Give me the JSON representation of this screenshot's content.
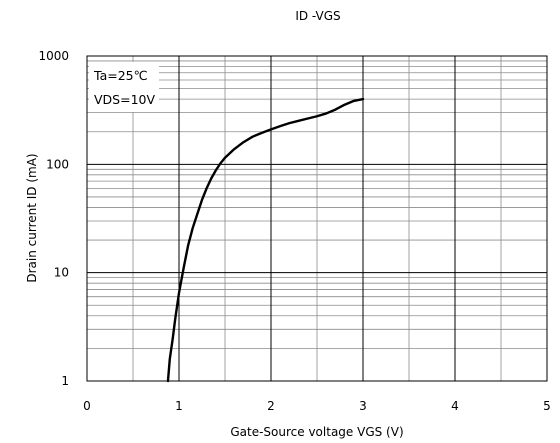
{
  "chart_data": {
    "type": "line",
    "title": "ID -VGS",
    "xlabel": "Gate-Source voltage VGS (V)",
    "ylabel": "Drain current ID (mA)",
    "xlim": [
      0,
      5
    ],
    "ylim": [
      1,
      1000
    ],
    "y_scale": "log",
    "x_ticks": [
      "0",
      "1",
      "2",
      "3",
      "4",
      "5"
    ],
    "y_ticks": [
      "1",
      "10",
      "100",
      "1000"
    ],
    "grid": true,
    "annotations": [
      "Ta=25℃",
      "VDS=10V"
    ],
    "series": [
      {
        "color": "#000000",
        "x": [
          0.88,
          0.9,
          0.93,
          0.96,
          1.0,
          1.05,
          1.1,
          1.15,
          1.2,
          1.25,
          1.3,
          1.35,
          1.4,
          1.45,
          1.5,
          1.6,
          1.7,
          1.8,
          1.9,
          2.0,
          2.1,
          2.2,
          2.3,
          2.4,
          2.5,
          2.6,
          2.7,
          2.8,
          2.9,
          3.0
        ],
        "y": [
          1.0,
          1.6,
          2.4,
          3.8,
          6.5,
          11,
          18,
          26,
          35,
          47,
          60,
          74,
          88,
          102,
          115,
          138,
          160,
          180,
          195,
          210,
          225,
          240,
          252,
          265,
          278,
          295,
          320,
          355,
          385,
          400
        ]
      }
    ]
  }
}
